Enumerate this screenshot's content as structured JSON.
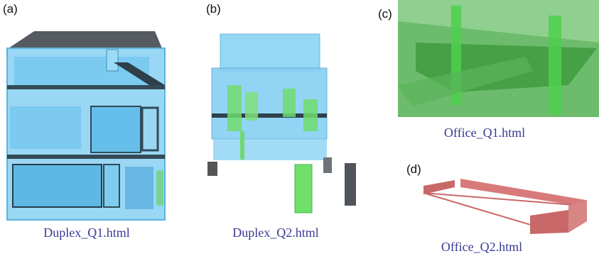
{
  "panels": [
    {
      "label": "(a)",
      "caption": "Duplex_Q1.html"
    },
    {
      "label": "(b)",
      "caption": "Duplex_Q2.html"
    },
    {
      "label": "(c)",
      "caption": "Office_Q1.html"
    },
    {
      "label": "(d)",
      "caption": "Office_Q2.html"
    }
  ]
}
